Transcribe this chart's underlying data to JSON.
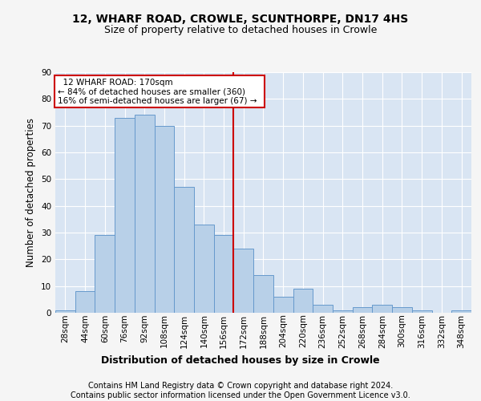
{
  "title1": "12, WHARF ROAD, CROWLE, SCUNTHORPE, DN17 4HS",
  "title2": "Size of property relative to detached houses in Crowle",
  "xlabel": "Distribution of detached houses by size in Crowle",
  "ylabel": "Number of detached properties",
  "footer1": "Contains HM Land Registry data © Crown copyright and database right 2024.",
  "footer2": "Contains public sector information licensed under the Open Government Licence v3.0.",
  "annotation_line1": "12 WHARF ROAD: 170sqm",
  "annotation_line2": "← 84% of detached houses are smaller (360)",
  "annotation_line3": "16% of semi-detached houses are larger (67) →",
  "bar_color": "#b8d0e8",
  "bar_edge_color": "#6699cc",
  "vline_color": "#cc0000",
  "vline_x": 172,
  "background_color": "#d9e5f3",
  "fig_background": "#f5f5f5",
  "categories": [
    "28sqm",
    "44sqm",
    "60sqm",
    "76sqm",
    "92sqm",
    "108sqm",
    "124sqm",
    "140sqm",
    "156sqm",
    "172sqm",
    "188sqm",
    "204sqm",
    "220sqm",
    "236sqm",
    "252sqm",
    "268sqm",
    "284sqm",
    "300sqm",
    "316sqm",
    "332sqm",
    "348sqm"
  ],
  "bin_starts": [
    28,
    44,
    60,
    76,
    92,
    108,
    124,
    140,
    156,
    172,
    188,
    204,
    220,
    236,
    252,
    268,
    284,
    300,
    316,
    332,
    348
  ],
  "bin_width": 16,
  "values": [
    1,
    8,
    29,
    73,
    74,
    70,
    47,
    33,
    29,
    24,
    14,
    6,
    9,
    3,
    1,
    2,
    3,
    2,
    1,
    0,
    1
  ],
  "ylim": [
    0,
    90
  ],
  "yticks": [
    0,
    10,
    20,
    30,
    40,
    50,
    60,
    70,
    80,
    90
  ],
  "grid_color": "#ffffff",
  "title1_fontsize": 10,
  "title2_fontsize": 9,
  "axis_label_fontsize": 8.5,
  "tick_fontsize": 7.5,
  "footer_fontsize": 7,
  "annot_fontsize": 7.5
}
